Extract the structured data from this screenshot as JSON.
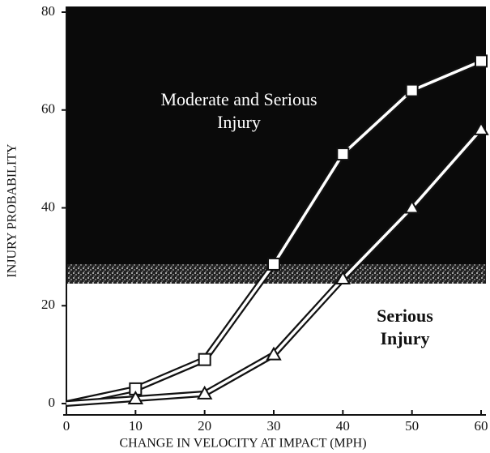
{
  "chart_data": {
    "type": "line",
    "x_label": "CHANGE IN VELOCITY AT IMPACT (MPH)",
    "y_label": "INJURY PROBABILITY",
    "x": [
      0,
      10,
      20,
      30,
      40,
      50,
      60
    ],
    "series": [
      {
        "marker": "square",
        "color": "#ffffff",
        "values": [
          0,
          3,
          9,
          28.5,
          51,
          64,
          70
        ]
      },
      {
        "marker": "triangle",
        "color": "#ffffff",
        "values": [
          0,
          1,
          2,
          10,
          25.5,
          40,
          56
        ]
      }
    ],
    "xlim": [
      0,
      60
    ],
    "xticks": [
      0,
      10,
      20,
      30,
      40,
      50,
      60
    ],
    "ylim": [
      0,
      80
    ],
    "yticks": [
      0,
      20,
      40,
      60,
      80
    ],
    "annotations": [
      {
        "lines": [
          "Moderate and Serious",
          "Injury"
        ],
        "color": "#ffffff",
        "bold": false
      },
      {
        "lines": [
          "Serious",
          "Injury"
        ],
        "color": "#111111",
        "bold": true
      }
    ]
  }
}
